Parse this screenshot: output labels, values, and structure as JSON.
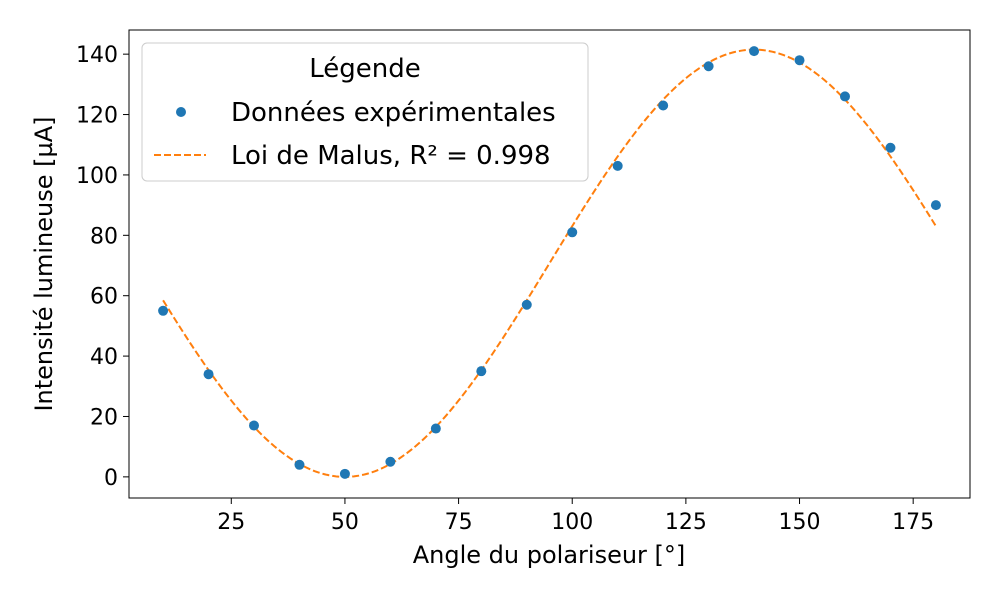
{
  "chart_data": {
    "type": "scatter",
    "xlabel": "Angle du polariseur [°]",
    "ylabel": "Intensité lumineuse [µA]",
    "xlim": [
      2.5,
      187.5
    ],
    "ylim": [
      -7,
      148
    ],
    "xticks": [
      25,
      50,
      75,
      100,
      125,
      150,
      175
    ],
    "yticks": [
      0,
      20,
      40,
      60,
      80,
      100,
      120,
      140
    ],
    "grid": false,
    "legend": {
      "title": "Légende",
      "placement": "top-left",
      "entries": [
        "Données expérimentales",
        "Loi de Malus, R² = 0.998"
      ]
    },
    "series": [
      {
        "name": "Données expérimentales",
        "kind": "scatter",
        "color": "#1f77b4",
        "x": [
          10,
          20,
          30,
          40,
          50,
          60,
          70,
          80,
          90,
          100,
          110,
          120,
          130,
          140,
          150,
          160,
          170,
          180
        ],
        "y": [
          55,
          34,
          17,
          4,
          1,
          5,
          16,
          35,
          57,
          81,
          103,
          123,
          136,
          141,
          138,
          126,
          109,
          90
        ]
      },
      {
        "name": "Loi de Malus, R² = 0.998",
        "kind": "dashed-line",
        "color": "#ff7f0e",
        "model": {
          "amplitude": 141.5,
          "phase_deg": 140
        },
        "x_range": [
          10,
          180
        ]
      }
    ]
  }
}
